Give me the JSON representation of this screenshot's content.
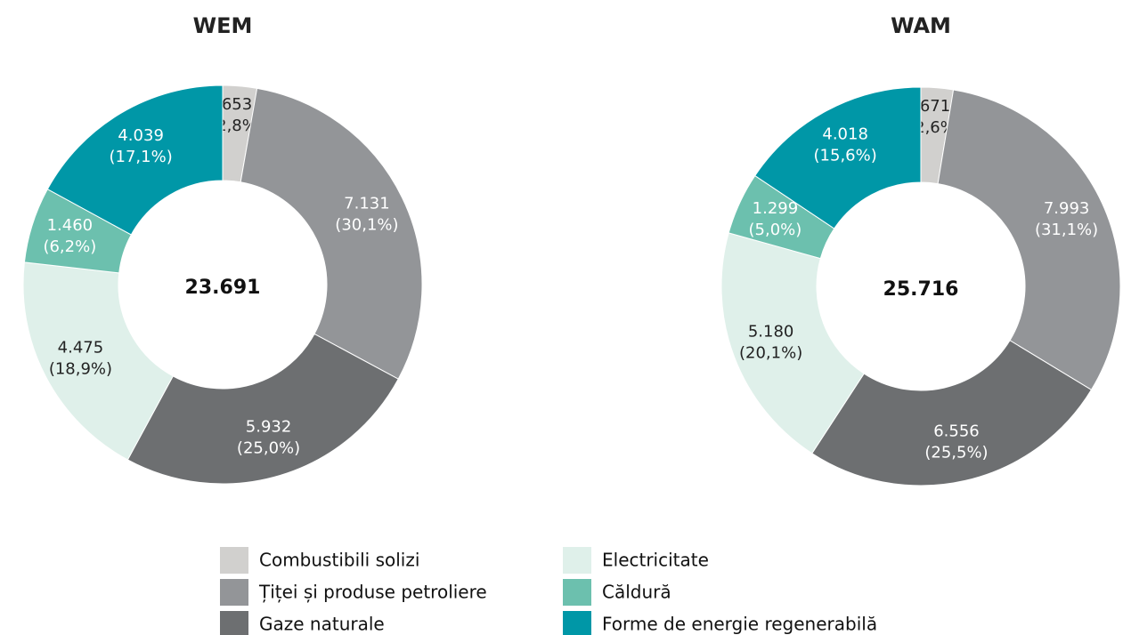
{
  "chart_data": [
    {
      "type": "donut",
      "title": "WEM",
      "values": [
        653,
        7131,
        5932,
        4475,
        1460,
        4039
      ],
      "value_labels": [
        "653",
        "7.131",
        "5.932",
        "4.475",
        "1.460",
        "4.039"
      ],
      "percentages": [
        2.8,
        30.1,
        25.0,
        18.9,
        6.2,
        17.1
      ],
      "percentage_labels": [
        "(2,8%)",
        "(30,1%)",
        "(25,0%)",
        "(18,9%)",
        "(6,2%)",
        "(17,1%)"
      ],
      "total": 23691,
      "total_label": "23.691"
    },
    {
      "type": "donut",
      "title": "WAM",
      "values": [
        671,
        7993,
        6556,
        5180,
        1299,
        4018
      ],
      "value_labels": [
        "671",
        "7.993",
        "6.556",
        "5.180",
        "1.299",
        "4.018"
      ],
      "percentages": [
        2.6,
        31.1,
        25.5,
        20.1,
        5.0,
        15.6
      ],
      "percentage_labels": [
        "(2,6%)",
        "(31,1%)",
        "(25,5%)",
        "(20,1%)",
        "(5,0%)",
        "(15,6%)"
      ],
      "total": 25716,
      "total_label": "25.716"
    }
  ],
  "legend": {
    "labels": [
      "Combustibili solizi",
      "Țiței și produse petroliere",
      "Gaze naturale",
      "Electricitate",
      "Căldură",
      "Forme de energie regenerabilă"
    ],
    "colors": [
      "#d1d0ce",
      "#939598",
      "#6d6f71",
      "#dff0ea",
      "#6cc0ae",
      "#0097a7"
    ]
  }
}
